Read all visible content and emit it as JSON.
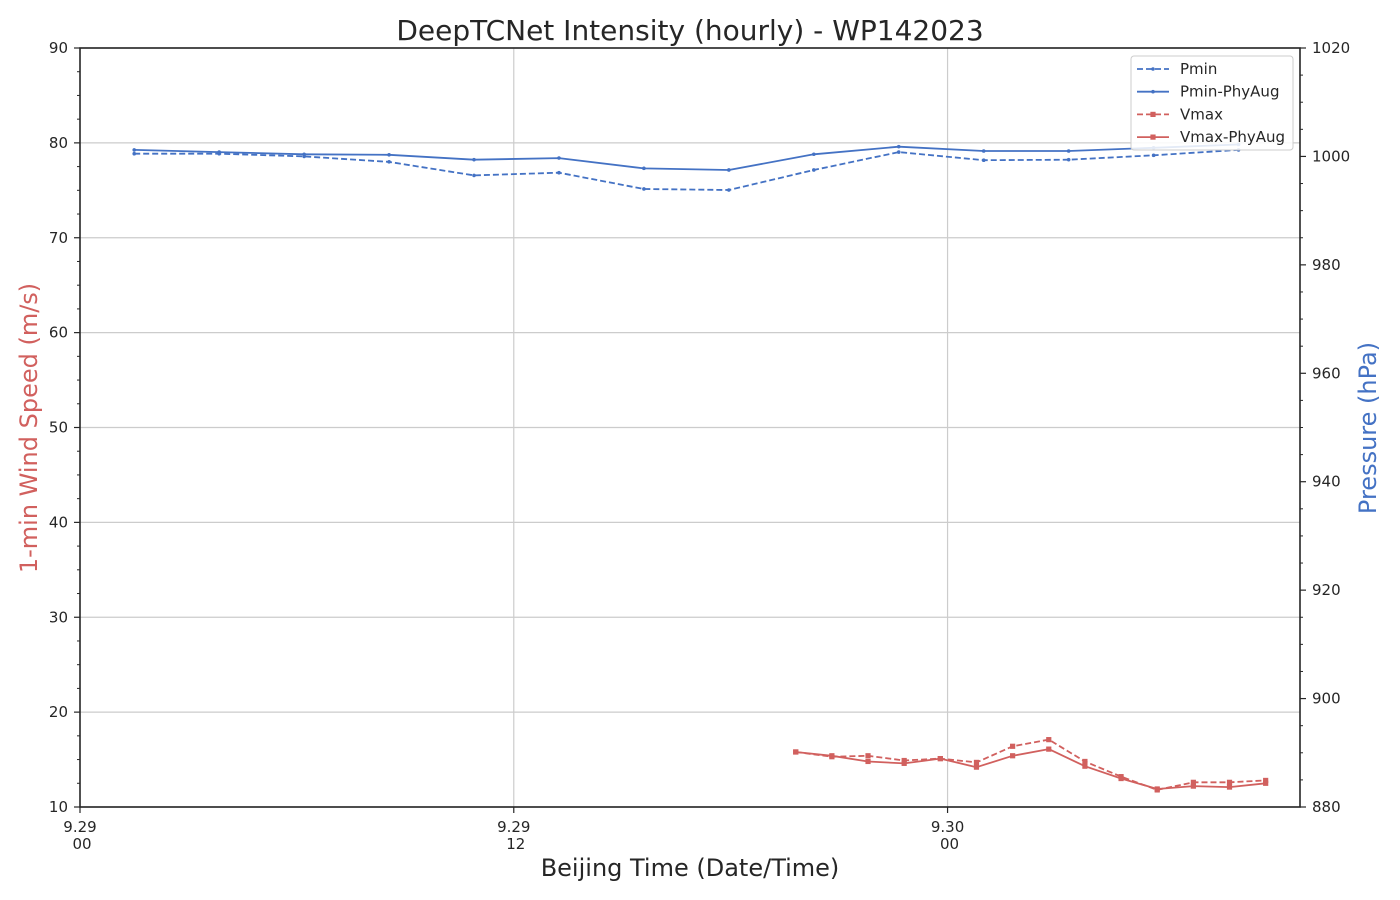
{
  "chart_data": {
    "type": "line",
    "title": "DeepTCNet Intensity (hourly) - WP142023",
    "xlabel": "Beijing Time (Date/Time)",
    "ylabel_left": "1-min Wind Speed (m/s)",
    "ylabel_right": "Pressure (hPa)",
    "x_unit": "hours since 9.29 00",
    "xlim": [
      0,
      33.75
    ],
    "ylim_left": [
      10,
      90
    ],
    "ylim_right": [
      880,
      1020
    ],
    "grid": true,
    "legend_position": "top-right",
    "x_ticks": [
      {
        "value": 0,
        "date": "9.29",
        "time": "00"
      },
      {
        "value": 12,
        "date": "9.29",
        "time": "12"
      },
      {
        "value": 24,
        "date": "9.30",
        "time": "00"
      }
    ],
    "y_ticks_left": [
      10,
      20,
      30,
      40,
      50,
      60,
      70,
      80,
      90
    ],
    "y_ticks_right": [
      880,
      900,
      920,
      940,
      960,
      980,
      1000,
      1020
    ],
    "colors": {
      "pressure": "#4472c4",
      "wind": "#d1605e",
      "axis": "#262626",
      "grid": "#cccccc"
    },
    "series": [
      {
        "name": "Pmin",
        "axis": "right",
        "style": "dashed",
        "color": "#4472c4",
        "x": [
          1.5,
          3.85,
          6.2,
          8.55,
          10.9,
          13.25,
          15.6,
          17.95,
          20.3,
          22.65,
          25.0,
          27.35,
          29.7,
          32.05
        ],
        "y": [
          1000.5,
          1000.5,
          1000.0,
          999.0,
          996.5,
          997.0,
          994.0,
          993.8,
          997.5,
          1000.8,
          999.3,
          999.4,
          1000.2,
          1001.2
        ]
      },
      {
        "name": "Pmin-PhyAug",
        "axis": "right",
        "style": "solid",
        "color": "#4472c4",
        "x": [
          1.5,
          3.85,
          6.2,
          8.55,
          10.9,
          13.25,
          15.6,
          17.95,
          20.3,
          22.65,
          25.0,
          27.35,
          29.7,
          32.05
        ],
        "y": [
          1001.2,
          1000.8,
          1000.4,
          1000.3,
          999.4,
          999.7,
          997.8,
          997.5,
          1000.4,
          1001.8,
          1001.0,
          1001.0,
          1001.6,
          1002.2
        ]
      },
      {
        "name": "Vmax",
        "axis": "left",
        "style": "dashed",
        "color": "#d1605e",
        "x": [
          19.8,
          20.8,
          21.8,
          22.8,
          23.8,
          24.8,
          25.8,
          26.8,
          27.8,
          28.8,
          29.8,
          30.8,
          31.8,
          32.8
        ],
        "y": [
          15.8,
          15.3,
          15.4,
          14.9,
          15.1,
          14.7,
          16.4,
          17.1,
          14.8,
          13.2,
          11.8,
          12.6,
          12.6,
          12.8
        ]
      },
      {
        "name": "Vmax-PhyAug",
        "axis": "left",
        "style": "solid",
        "color": "#d1605e",
        "x": [
          19.8,
          20.8,
          21.8,
          22.8,
          23.8,
          24.8,
          25.8,
          26.8,
          27.8,
          28.8,
          29.8,
          30.8,
          31.8,
          32.8
        ],
        "y": [
          15.8,
          15.4,
          14.8,
          14.6,
          15.1,
          14.2,
          15.4,
          16.1,
          14.3,
          13.0,
          11.9,
          12.2,
          12.1,
          12.5
        ]
      }
    ]
  }
}
